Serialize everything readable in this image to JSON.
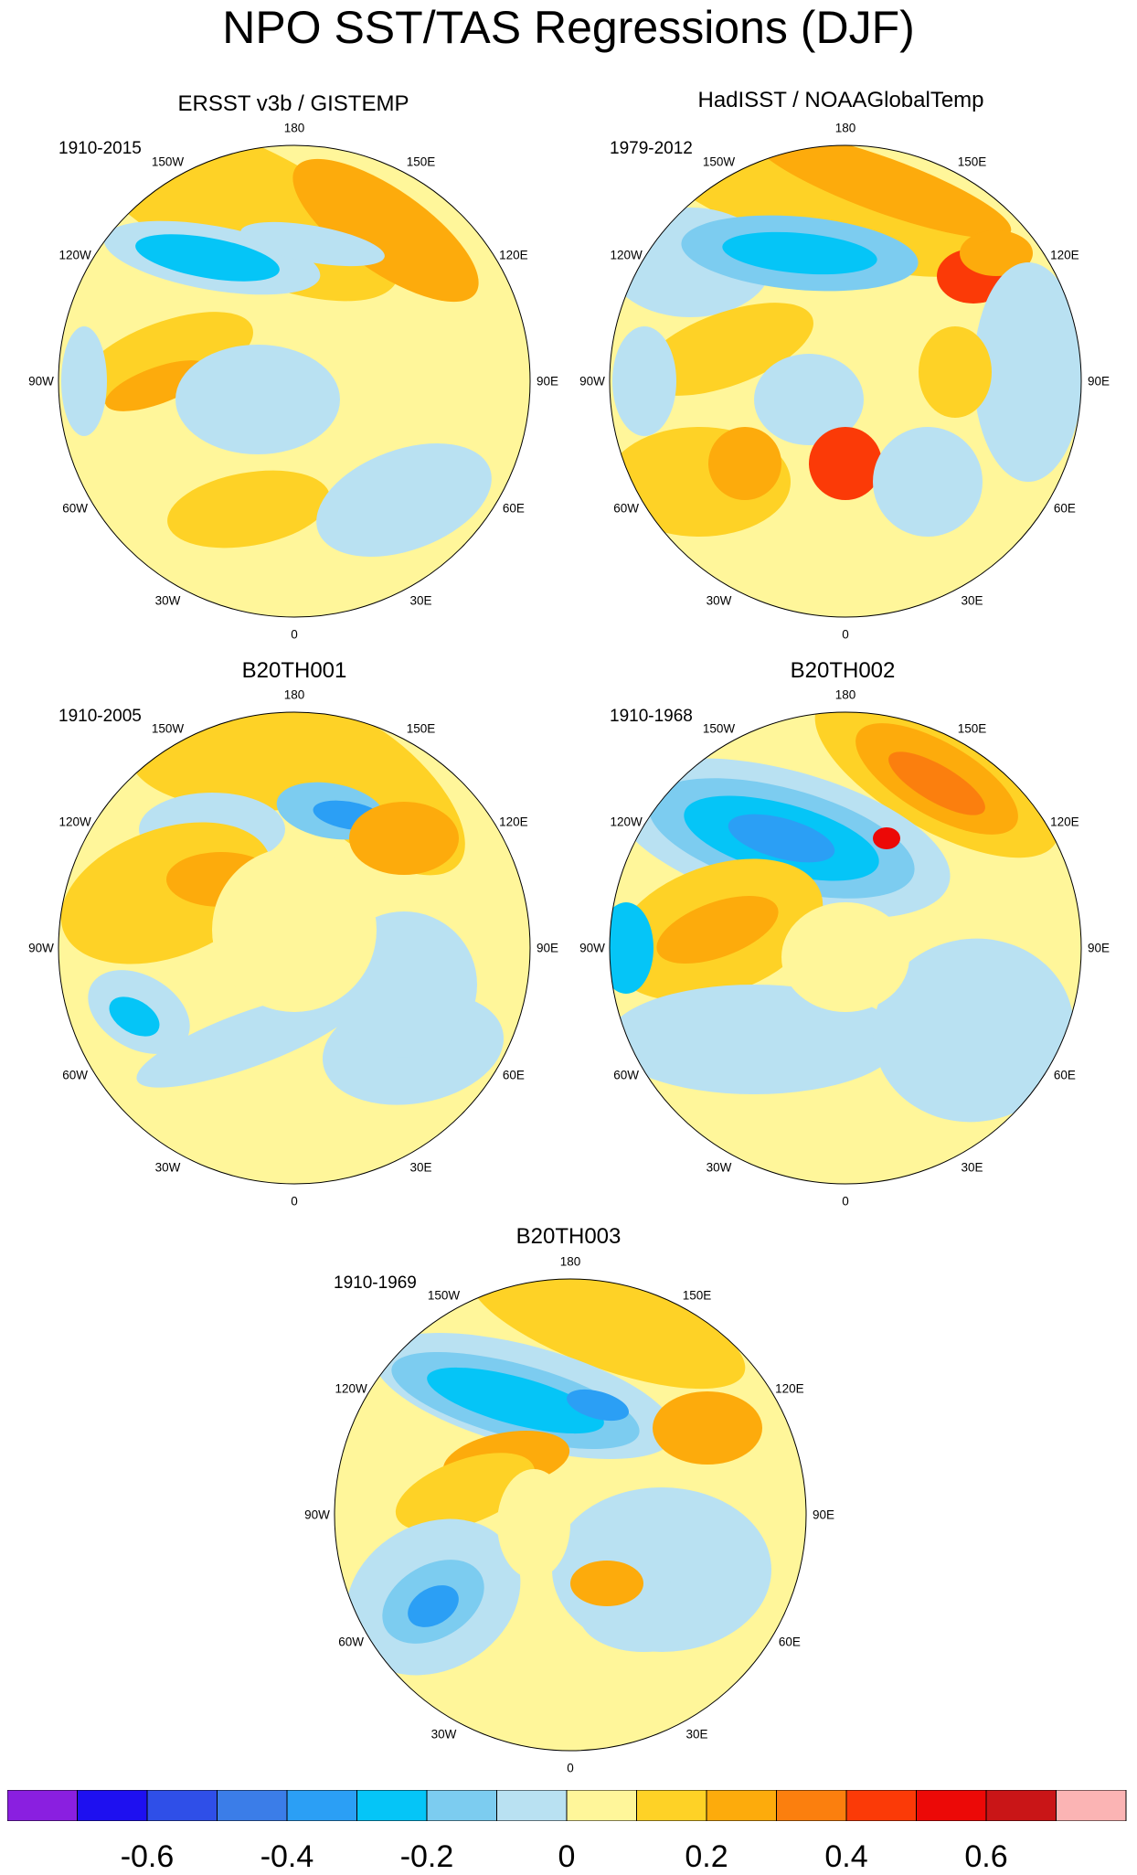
{
  "title": "NPO SST/TAS Regressions (DJF)",
  "longitude_labels": [
    "180",
    "150E",
    "120E",
    "90E",
    "60E",
    "30E",
    "0",
    "30W",
    "60W",
    "90W",
    "120W",
    "150W"
  ],
  "panels": [
    {
      "title": "ERSST v3b / GISTEMP",
      "period": "1910-2015"
    },
    {
      "title": "HadISST / NOAAGlobalTemp",
      "period": "1979-2012"
    },
    {
      "title": "B20TH001",
      "period": "1910-2005"
    },
    {
      "title": "B20TH002",
      "period": "1910-1968"
    },
    {
      "title": "B20TH003",
      "period": "1910-1969"
    }
  ],
  "colorbar": {
    "colors": [
      "#8a1fe0",
      "#1e10f0",
      "#2f4fe8",
      "#3b7de8",
      "#2b9ff5",
      "#05c5f7",
      "#7cccf0",
      "#b9e1f2",
      "#fff69a",
      "#fed226",
      "#fdab0c",
      "#fb7f0e",
      "#fb3a07",
      "#ec0907",
      "#c91517",
      "#fbb4b4"
    ],
    "tick_labels": [
      "-0.6",
      "-0.4",
      "-0.2",
      "0",
      "0.2",
      "0.4",
      "0.6"
    ]
  }
}
